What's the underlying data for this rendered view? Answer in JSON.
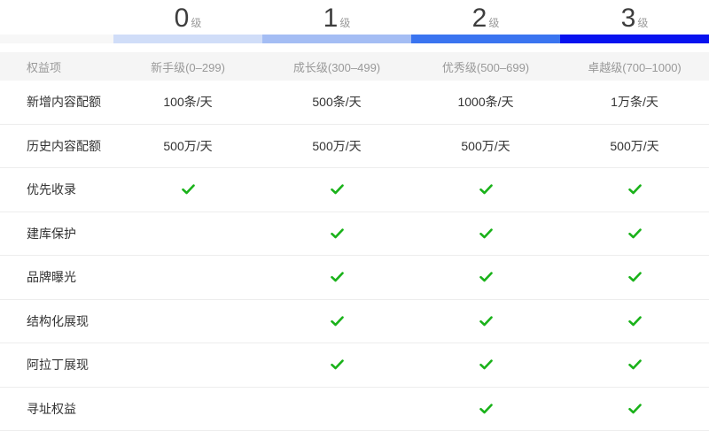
{
  "levels": [
    {
      "number": "0",
      "unit": "级"
    },
    {
      "number": "1",
      "unit": "级"
    },
    {
      "number": "2",
      "unit": "级"
    },
    {
      "number": "3",
      "unit": "级"
    }
  ],
  "progress_bar": {
    "track_color": "#f7f7f7",
    "segments": [
      {
        "level": "0",
        "color": "#d0ddf8"
      },
      {
        "level": "1",
        "color": "#a4bdf4"
      },
      {
        "level": "2",
        "color": "#3a74f0"
      },
      {
        "level": "3",
        "color": "#0712ef"
      }
    ]
  },
  "table": {
    "check_color": "#1ab21a",
    "header": {
      "benefit_column": "权益项",
      "level_columns": [
        "新手级(0–299)",
        "成长级(300–499)",
        "优秀级(500–699)",
        "卓越级(700–1000)"
      ]
    },
    "rows": [
      {
        "label": "新增内容配额",
        "cells": [
          {
            "type": "text",
            "value": "100条/天"
          },
          {
            "type": "text",
            "value": "500条/天"
          },
          {
            "type": "text",
            "value": "1000条/天"
          },
          {
            "type": "text",
            "value": "1万条/天"
          }
        ]
      },
      {
        "label": "历史内容配额",
        "cells": [
          {
            "type": "text",
            "value": "500万/天"
          },
          {
            "type": "text",
            "value": "500万/天"
          },
          {
            "type": "text",
            "value": "500万/天"
          },
          {
            "type": "text",
            "value": "500万/天"
          }
        ]
      },
      {
        "label": "优先收录",
        "cells": [
          {
            "type": "check"
          },
          {
            "type": "check"
          },
          {
            "type": "check"
          },
          {
            "type": "check"
          }
        ]
      },
      {
        "label": "建库保护",
        "cells": [
          {
            "type": "empty"
          },
          {
            "type": "check"
          },
          {
            "type": "check"
          },
          {
            "type": "check"
          }
        ]
      },
      {
        "label": "品牌曝光",
        "cells": [
          {
            "type": "empty"
          },
          {
            "type": "check"
          },
          {
            "type": "check"
          },
          {
            "type": "check"
          }
        ]
      },
      {
        "label": "结构化展现",
        "cells": [
          {
            "type": "empty"
          },
          {
            "type": "check"
          },
          {
            "type": "check"
          },
          {
            "type": "check"
          }
        ]
      },
      {
        "label": "阿拉丁展现",
        "cells": [
          {
            "type": "empty"
          },
          {
            "type": "check"
          },
          {
            "type": "check"
          },
          {
            "type": "check"
          }
        ]
      },
      {
        "label": "寻址权益",
        "cells": [
          {
            "type": "empty"
          },
          {
            "type": "empty"
          },
          {
            "type": "check"
          },
          {
            "type": "check"
          }
        ]
      }
    ]
  }
}
